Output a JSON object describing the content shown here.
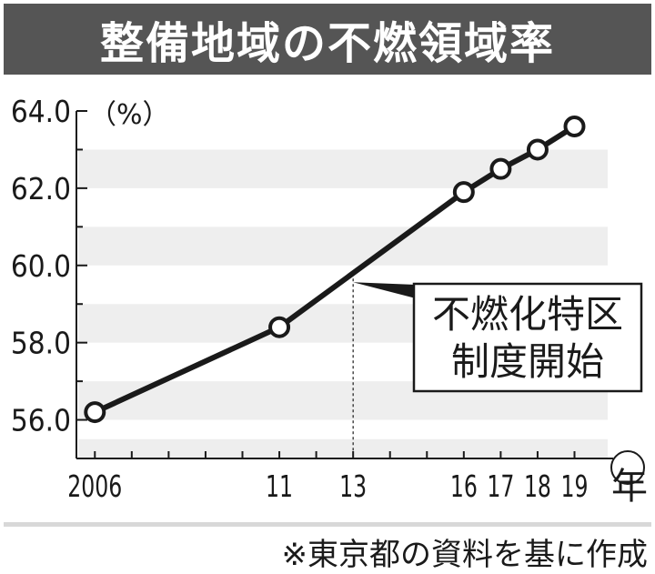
{
  "colors": {
    "title_bg": "#555555",
    "line": "#1a1a1a",
    "stripe": "#eeeeee",
    "background": "#ffffff"
  },
  "chart_data": {
    "type": "line",
    "title": "整備地域の不燃領域率",
    "unit_label": "（%）",
    "x_unit_label": "年",
    "ylim": [
      55.0,
      64.0
    ],
    "y_ticks": [
      56.0,
      58.0,
      60.0,
      62.0,
      64.0
    ],
    "y_tick_labels": [
      "56.0",
      "58.0",
      "60.0",
      "62.0",
      "64.0"
    ],
    "xlim": [
      2005.5,
      2019.9
    ],
    "x_ticks": [
      2006,
      2007,
      2008,
      2009,
      2010,
      2011,
      2012,
      2013,
      2014,
      2015,
      2016,
      2017,
      2018,
      2019
    ],
    "x_tick_labels": [
      {
        "x": 2006,
        "label": "2006"
      },
      {
        "x": 2011,
        "label": "11"
      },
      {
        "x": 2013,
        "label": "13"
      },
      {
        "x": 2016,
        "label": "16"
      },
      {
        "x": 2017,
        "label": "17"
      },
      {
        "x": 2018,
        "label": "18"
      },
      {
        "x": 2019,
        "label": "19"
      }
    ],
    "series": [
      {
        "x": [
          2006,
          2011,
          2016,
          2017,
          2018,
          2019
        ],
        "values": [
          56.2,
          58.4,
          61.9,
          62.5,
          63.0,
          63.6
        ]
      }
    ],
    "annotation": {
      "x": 2013,
      "y": 59.8,
      "lines": [
        "不燃化特区",
        "制度開始"
      ]
    },
    "grid": false,
    "striped_background": true
  },
  "footer": {
    "source": "※東京都の資料を基に作成"
  }
}
